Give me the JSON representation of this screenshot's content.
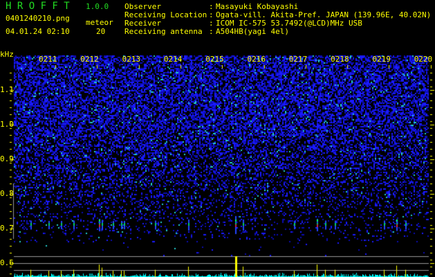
{
  "header": {
    "app_name": "H R O F F T",
    "version": "1.0.0",
    "filename": "0401240210.png",
    "datetime": "04.01.24 02:10",
    "meteor_label": "meteor",
    "meteor_count": "20",
    "info": [
      {
        "label": "Observer",
        "value": "Masayuki Kobayashi"
      },
      {
        "label": "Receiving Location",
        "value": "Ogata-vill. Akita-Pref. JAPAN (139.96E, 40.02N)"
      },
      {
        "label": "Receiver",
        "value": "ICOM IC-575 53.7492(@LCD)MHz USB"
      },
      {
        "label": "Receiving antenna",
        "value": "A504HB(yagi 4el)"
      }
    ]
  },
  "chart_data": {
    "type": "heatmap",
    "ylabel": "kHz",
    "ylim": [
      0.56,
      1.16
    ],
    "y_ticks": [
      "1.1",
      "1.0",
      "0.9",
      "0.8",
      "0.7",
      "0.6"
    ],
    "x_ticks": [
      "0211",
      "0212",
      "0213",
      "0214",
      "0215",
      "0216",
      "0217",
      "0218",
      "0219",
      "0220"
    ],
    "xlim": [
      "02:10:00",
      "02:20:00"
    ],
    "meteor_echo_freq_khz": 0.71,
    "detections": [
      {
        "time": "02:10:24",
        "level": 0.35
      },
      {
        "time": "02:10:50",
        "level": 0.3
      },
      {
        "time": "02:11:08",
        "level": 0.3
      },
      {
        "time": "02:11:26",
        "level": 0.35
      },
      {
        "time": "02:12:03",
        "level": 0.6
      },
      {
        "time": "02:12:07",
        "level": 0.45
      },
      {
        "time": "02:12:23",
        "level": 0.3
      },
      {
        "time": "02:12:35",
        "level": 0.3
      },
      {
        "time": "02:12:39",
        "level": 0.3
      },
      {
        "time": "02:13:24",
        "level": 0.35
      },
      {
        "time": "02:14:12",
        "level": 0.5
      },
      {
        "time": "02:15:20",
        "level": 1.0
      },
      {
        "time": "02:15:31",
        "level": 0.5
      },
      {
        "time": "02:16:45",
        "level": 0.3
      },
      {
        "time": "02:17:18",
        "level": 0.6
      },
      {
        "time": "02:17:30",
        "level": 0.35
      },
      {
        "time": "02:17:44",
        "level": 0.35
      },
      {
        "time": "02:18:55",
        "level": 0.35
      },
      {
        "time": "02:19:13",
        "level": 0.55
      },
      {
        "time": "02:19:26",
        "level": 0.35
      }
    ],
    "colors": {
      "noise": "#1a1aff",
      "detection": "#ffff00",
      "level_trace": "#00ffff",
      "text": "#ffff00",
      "title": "#22dd22"
    }
  }
}
